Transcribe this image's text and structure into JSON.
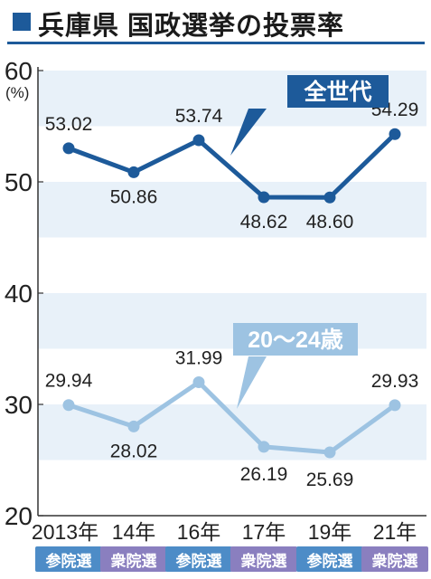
{
  "title": "兵庫県 国政選挙の投票率",
  "colors": {
    "title_square": "#1d5a9a",
    "rule": "#1d5a9a",
    "band": "#e8f1f9",
    "series_all": "#1d5a9a",
    "series_young": "#9dc3e2",
    "label_all_bg": "#1d5a9a",
    "label_young_bg": "#9dc3e2",
    "badge_upper": "#4d8cc7",
    "badge_lower": "#8a7fbf"
  },
  "chart_data": {
    "type": "line",
    "title": "兵庫県 国政選挙の投票率",
    "ylabel": "(%)",
    "ylim": [
      20,
      60
    ],
    "yticks": [
      "20",
      "30",
      "40",
      "50",
      "60"
    ],
    "categories": [
      "2013年",
      "14年",
      "16年",
      "17年",
      "19年",
      "21年"
    ],
    "election_types": [
      "参院選",
      "衆院選",
      "参院選",
      "衆院選",
      "参院選",
      "衆院選"
    ],
    "series": [
      {
        "name": "全世代",
        "values": [
          53.02,
          50.86,
          53.74,
          48.62,
          48.6,
          54.29
        ],
        "value_labels": [
          "53.02",
          "50.86",
          "53.74",
          "48.62",
          "48.60",
          "54.29"
        ]
      },
      {
        "name": "20～24歳",
        "values": [
          29.94,
          28.02,
          31.99,
          26.19,
          25.69,
          29.93
        ],
        "value_labels": [
          "29.94",
          "28.02",
          "31.99",
          "26.19",
          "25.69",
          "29.93"
        ]
      }
    ],
    "grid": "horizontal bands"
  }
}
